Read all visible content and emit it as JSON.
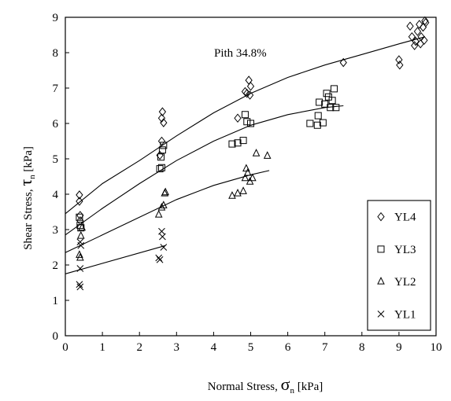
{
  "chart_data": {
    "type": "scatter",
    "annotation": "Pith 34.8%",
    "xlabel": {
      "main": "Normal Stress, ",
      "symbol": "σ",
      "sub": "n",
      "unit": " [kPa]"
    },
    "ylabel": {
      "main": "Shear Stress, ",
      "symbol": "τ",
      "sub": "n",
      "unit": " [kPa]"
    },
    "xlim": [
      0,
      10
    ],
    "ylim": [
      0,
      9
    ],
    "xticks": [
      0,
      1,
      2,
      3,
      4,
      5,
      6,
      7,
      8,
      9,
      10
    ],
    "yticks": [
      0,
      1,
      2,
      3,
      4,
      5,
      6,
      7,
      8,
      9
    ],
    "legend_position": "bottom-right",
    "series": [
      {
        "name": "YL4",
        "marker": "diamond",
        "points": [
          [
            0.38,
            3.98
          ],
          [
            0.38,
            3.8
          ],
          [
            0.4,
            3.4
          ],
          [
            0.4,
            3.25
          ],
          [
            2.55,
            5.1
          ],
          [
            2.6,
            5.5
          ],
          [
            2.62,
            6.33
          ],
          [
            2.6,
            6.15
          ],
          [
            2.65,
            6.02
          ],
          [
            4.65,
            6.15
          ],
          [
            4.85,
            6.9
          ],
          [
            4.9,
            6.85
          ],
          [
            4.95,
            7.22
          ],
          [
            5.0,
            7.05
          ],
          [
            4.98,
            6.8
          ],
          [
            7.5,
            7.72
          ],
          [
            9.0,
            7.8
          ],
          [
            9.02,
            7.65
          ],
          [
            9.3,
            8.75
          ],
          [
            9.35,
            8.45
          ],
          [
            9.42,
            8.2
          ],
          [
            9.45,
            8.32
          ],
          [
            9.5,
            8.6
          ],
          [
            9.55,
            8.8
          ],
          [
            9.58,
            8.25
          ],
          [
            9.6,
            8.45
          ],
          [
            9.65,
            8.72
          ],
          [
            9.68,
            8.35
          ],
          [
            9.7,
            8.9
          ],
          [
            9.72,
            8.85
          ]
        ],
        "trend": [
          [
            0.0,
            3.45
          ],
          [
            1.0,
            4.3
          ],
          [
            2.0,
            4.95
          ],
          [
            3.0,
            5.65
          ],
          [
            4.0,
            6.3
          ],
          [
            5.0,
            6.85
          ],
          [
            6.0,
            7.3
          ],
          [
            7.0,
            7.65
          ],
          [
            8.0,
            7.95
          ],
          [
            9.0,
            8.25
          ],
          [
            9.7,
            8.45
          ]
        ]
      },
      {
        "name": "YL3",
        "marker": "square",
        "points": [
          [
            0.38,
            3.35
          ],
          [
            0.4,
            3.12
          ],
          [
            0.42,
            3.05
          ],
          [
            2.55,
            4.72
          ],
          [
            2.58,
            5.05
          ],
          [
            2.6,
            4.75
          ],
          [
            2.62,
            5.25
          ],
          [
            2.65,
            5.38
          ],
          [
            4.5,
            5.42
          ],
          [
            4.65,
            5.45
          ],
          [
            4.8,
            5.52
          ],
          [
            4.85,
            6.25
          ],
          [
            4.9,
            6.05
          ],
          [
            5.0,
            6.0
          ],
          [
            6.6,
            6.0
          ],
          [
            6.8,
            5.95
          ],
          [
            6.82,
            6.22
          ],
          [
            6.85,
            6.6
          ],
          [
            6.95,
            6.02
          ],
          [
            7.0,
            6.55
          ],
          [
            7.05,
            6.85
          ],
          [
            7.1,
            6.75
          ],
          [
            7.15,
            6.45
          ],
          [
            7.2,
            6.65
          ],
          [
            7.25,
            6.98
          ],
          [
            7.3,
            6.45
          ]
        ],
        "trend": [
          [
            0.0,
            2.85
          ],
          [
            1.0,
            3.6
          ],
          [
            2.0,
            4.3
          ],
          [
            3.0,
            4.95
          ],
          [
            4.0,
            5.5
          ],
          [
            5.0,
            5.95
          ],
          [
            6.0,
            6.25
          ],
          [
            7.0,
            6.45
          ],
          [
            7.5,
            6.5
          ]
        ]
      },
      {
        "name": "YL2",
        "marker": "triangle",
        "points": [
          [
            0.38,
            2.28
          ],
          [
            0.4,
            2.2
          ],
          [
            0.42,
            2.82
          ],
          [
            0.45,
            3.05
          ],
          [
            2.52,
            3.42
          ],
          [
            2.6,
            3.62
          ],
          [
            2.65,
            3.68
          ],
          [
            2.68,
            4.02
          ],
          [
            2.7,
            4.05
          ],
          [
            4.5,
            3.95
          ],
          [
            4.65,
            4.02
          ],
          [
            4.8,
            4.08
          ],
          [
            4.85,
            4.45
          ],
          [
            4.88,
            4.72
          ],
          [
            4.92,
            4.6
          ],
          [
            4.98,
            4.35
          ],
          [
            5.05,
            4.45
          ],
          [
            5.15,
            5.15
          ],
          [
            5.45,
            5.08
          ]
        ],
        "trend": [
          [
            0.0,
            2.35
          ],
          [
            1.0,
            2.85
          ],
          [
            2.0,
            3.35
          ],
          [
            3.0,
            3.85
          ],
          [
            4.0,
            4.25
          ],
          [
            5.0,
            4.55
          ],
          [
            5.5,
            4.67
          ]
        ]
      },
      {
        "name": "YL1",
        "marker": "x",
        "points": [
          [
            0.38,
            1.45
          ],
          [
            0.4,
            1.38
          ],
          [
            0.4,
            1.9
          ],
          [
            0.42,
            2.55
          ],
          [
            0.4,
            2.65
          ],
          [
            2.52,
            2.2
          ],
          [
            2.55,
            2.15
          ],
          [
            2.6,
            2.95
          ],
          [
            2.62,
            2.8
          ],
          [
            2.65,
            2.5
          ]
        ],
        "trend": [
          [
            0.0,
            1.75
          ],
          [
            2.7,
            2.55
          ]
        ]
      }
    ]
  }
}
